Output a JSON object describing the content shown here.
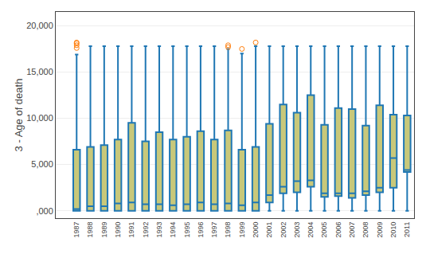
{
  "chart_data": {
    "type": "box",
    "ylabel": "3 - Age of death",
    "categories": [
      "1987",
      "1988",
      "1989",
      "1990",
      "1991",
      "1992",
      "1993",
      "1994",
      "1995",
      "1996",
      "1997",
      "1998",
      "1999",
      "2000",
      "2001",
      "2002",
      "2003",
      "2004",
      "2005",
      "2006",
      "2007",
      "2008",
      "2009",
      "2010",
      "2011"
    ],
    "boxes": [
      {
        "q1": 0,
        "median": 200,
        "q3": 6600,
        "whisker_low": 0,
        "whisker_high": 16900,
        "outliers": [
          17600,
          17900,
          18100,
          18200
        ]
      },
      {
        "q1": 0,
        "median": 500,
        "q3": 6900,
        "whisker_low": 0,
        "whisker_high": 17800,
        "outliers": []
      },
      {
        "q1": 0,
        "median": 500,
        "q3": 7100,
        "whisker_low": 0,
        "whisker_high": 17800,
        "outliers": []
      },
      {
        "q1": 0,
        "median": 800,
        "q3": 7700,
        "whisker_low": 0,
        "whisker_high": 17800,
        "outliers": []
      },
      {
        "q1": 0,
        "median": 900,
        "q3": 9500,
        "whisker_low": 0,
        "whisker_high": 17800,
        "outliers": []
      },
      {
        "q1": 0,
        "median": 700,
        "q3": 7500,
        "whisker_low": 0,
        "whisker_high": 17800,
        "outliers": []
      },
      {
        "q1": 0,
        "median": 700,
        "q3": 8500,
        "whisker_low": 0,
        "whisker_high": 17800,
        "outliers": []
      },
      {
        "q1": 0,
        "median": 600,
        "q3": 7700,
        "whisker_low": 0,
        "whisker_high": 17800,
        "outliers": []
      },
      {
        "q1": 0,
        "median": 700,
        "q3": 8000,
        "whisker_low": 0,
        "whisker_high": 17800,
        "outliers": []
      },
      {
        "q1": 0,
        "median": 900,
        "q3": 8600,
        "whisker_low": 0,
        "whisker_high": 17800,
        "outliers": []
      },
      {
        "q1": 0,
        "median": 700,
        "q3": 7700,
        "whisker_low": 0,
        "whisker_high": 17800,
        "outliers": []
      },
      {
        "q1": 0,
        "median": 800,
        "q3": 8700,
        "whisker_low": 0,
        "whisker_high": 17500,
        "outliers": [
          17700,
          17900
        ]
      },
      {
        "q1": 0,
        "median": 600,
        "q3": 6600,
        "whisker_low": 0,
        "whisker_high": 17000,
        "outliers": [
          17500
        ]
      },
      {
        "q1": 0,
        "median": 900,
        "q3": 6900,
        "whisker_low": 0,
        "whisker_high": 17800,
        "outliers": [
          18200
        ]
      },
      {
        "q1": 900,
        "median": 1700,
        "q3": 9400,
        "whisker_low": 0,
        "whisker_high": 17800,
        "outliers": []
      },
      {
        "q1": 1900,
        "median": 2600,
        "q3": 11500,
        "whisker_low": 0,
        "whisker_high": 17800,
        "outliers": []
      },
      {
        "q1": 2000,
        "median": 3200,
        "q3": 10600,
        "whisker_low": 0,
        "whisker_high": 17800,
        "outliers": []
      },
      {
        "q1": 2600,
        "median": 3300,
        "q3": 12500,
        "whisker_low": 0,
        "whisker_high": 17800,
        "outliers": []
      },
      {
        "q1": 1500,
        "median": 1900,
        "q3": 9300,
        "whisker_low": 0,
        "whisker_high": 17800,
        "outliers": []
      },
      {
        "q1": 1600,
        "median": 1900,
        "q3": 11100,
        "whisker_low": 0,
        "whisker_high": 17800,
        "outliers": []
      },
      {
        "q1": 1400,
        "median": 1900,
        "q3": 11000,
        "whisker_low": 0,
        "whisker_high": 17800,
        "outliers": []
      },
      {
        "q1": 1700,
        "median": 2100,
        "q3": 9200,
        "whisker_low": 0,
        "whisker_high": 17800,
        "outliers": []
      },
      {
        "q1": 2000,
        "median": 2500,
        "q3": 11400,
        "whisker_low": 0,
        "whisker_high": 17800,
        "outliers": []
      },
      {
        "q1": 2500,
        "median": 5700,
        "q3": 10400,
        "whisker_low": 0,
        "whisker_high": 17800,
        "outliers": []
      },
      {
        "q1": 4200,
        "median": 4400,
        "q3": 10300,
        "whisker_low": 0,
        "whisker_high": 17800,
        "outliers": []
      }
    ],
    "color": "#c8c87a",
    "marker": "circle-open",
    "ylim": [
      -800,
      21500
    ],
    "yticks": [
      {
        "value": 0,
        "label": ",000"
      },
      {
        "value": 5000,
        "label": "5,000"
      },
      {
        "value": 10000,
        "label": "10,000"
      },
      {
        "value": 15000,
        "label": "15,000"
      },
      {
        "value": 20000,
        "label": "20,000"
      }
    ],
    "grid": true
  }
}
